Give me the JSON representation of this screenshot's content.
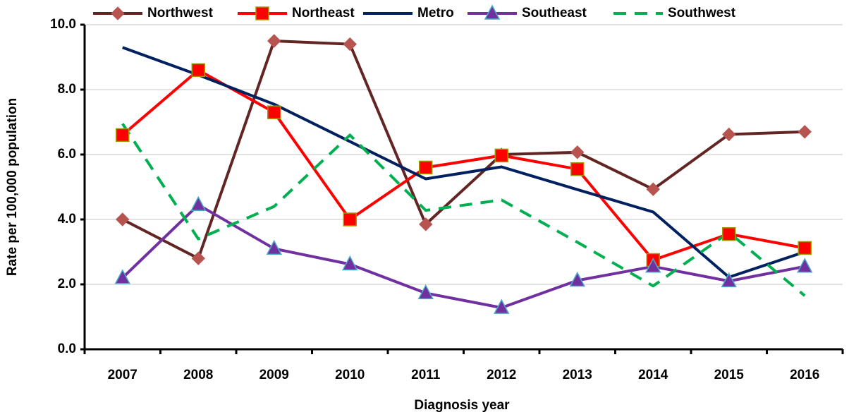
{
  "chart_data": {
    "type": "line",
    "x_label": "Diagnosis year",
    "y_label": "Rate per 100,000 population",
    "categories": [
      "2007",
      "2008",
      "2009",
      "2010",
      "2011",
      "2012",
      "2013",
      "2014",
      "2015",
      "2016"
    ],
    "series": [
      {
        "name": "Northwest",
        "color": "#632523",
        "marker": "diamond",
        "marker_color": "#b85450",
        "dash": false,
        "values": [
          4.0,
          2.8,
          9.5,
          9.4,
          3.85,
          6.0,
          6.07,
          4.93,
          6.62,
          6.7
        ]
      },
      {
        "name": "Northeast",
        "color": "#ff0000",
        "marker": "square",
        "marker_color": "#ff0000",
        "dash": false,
        "values": [
          6.6,
          8.6,
          7.3,
          4.0,
          5.6,
          5.97,
          5.55,
          2.75,
          3.55,
          3.12
        ]
      },
      {
        "name": "Metro",
        "color": "#002060",
        "marker": "none",
        "marker_color": "#002060",
        "dash": false,
        "values": [
          9.3,
          8.45,
          7.55,
          6.4,
          5.25,
          5.62,
          4.92,
          4.23,
          2.22,
          3.0
        ]
      },
      {
        "name": "Southeast",
        "color": "#7030a0",
        "marker": "triangle",
        "marker_color": "#7030a0",
        "dash": false,
        "values": [
          2.2,
          4.45,
          3.1,
          2.62,
          1.73,
          1.28,
          2.12,
          2.55,
          2.1,
          2.55
        ]
      },
      {
        "name": "Southwest",
        "color": "#00b050",
        "marker": "none",
        "marker_color": "#00b050",
        "dash": true,
        "values": [
          6.95,
          3.4,
          4.4,
          6.6,
          4.28,
          4.6,
          3.3,
          1.95,
          3.6,
          1.65
        ]
      }
    ],
    "ylim": [
      0,
      10
    ],
    "yticks": [
      {
        "value": 0,
        "label": "0.0"
      },
      {
        "value": 2,
        "label": "2.0"
      },
      {
        "value": 4,
        "label": "4.0"
      },
      {
        "value": 6,
        "label": "6.0"
      },
      {
        "value": 8,
        "label": "8.0"
      },
      {
        "value": 10,
        "label": "10.0"
      }
    ],
    "grid": true,
    "legend": "top"
  }
}
